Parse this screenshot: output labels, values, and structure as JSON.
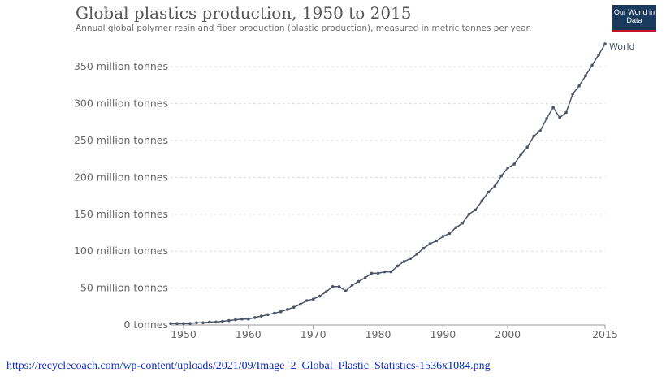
{
  "chart_data": {
    "type": "line",
    "title": "Global plastics production, 1950 to 2015",
    "subtitle": "Annual global polymer resin and fiber production (plastic production), measured in metric tonnes per year.",
    "xlabel": "",
    "ylabel": "",
    "xlim": [
      1948,
      2015
    ],
    "ylim": [
      0,
      380
    ],
    "x_ticks": [
      {
        "value": 1950,
        "label": "1950"
      },
      {
        "value": 1960,
        "label": "1960"
      },
      {
        "value": 1970,
        "label": "1970"
      },
      {
        "value": 1980,
        "label": "1980"
      },
      {
        "value": 1990,
        "label": "1990"
      },
      {
        "value": 2000,
        "label": "2000"
      },
      {
        "value": 2015,
        "label": "2015"
      }
    ],
    "y_ticks": [
      {
        "value": 0,
        "label": "0 tonnes"
      },
      {
        "value": 50,
        "label": "50 million tonnes"
      },
      {
        "value": 100,
        "label": "100 million tonnes"
      },
      {
        "value": 150,
        "label": "150 million tonnes"
      },
      {
        "value": 200,
        "label": "200 million tonnes"
      },
      {
        "value": 250,
        "label": "250 million tonnes"
      },
      {
        "value": 300,
        "label": "300 million tonnes"
      },
      {
        "value": 350,
        "label": "350 million tonnes"
      }
    ],
    "grid": true,
    "legend": "end-of-line label",
    "series": [
      {
        "name": "World",
        "color": "#4a5568",
        "x": [
          1948,
          1949,
          1950,
          1951,
          1952,
          1953,
          1954,
          1955,
          1956,
          1957,
          1958,
          1959,
          1960,
          1961,
          1962,
          1963,
          1964,
          1965,
          1966,
          1967,
          1968,
          1969,
          1970,
          1971,
          1972,
          1973,
          1974,
          1975,
          1976,
          1977,
          1978,
          1979,
          1980,
          1981,
          1982,
          1983,
          1984,
          1985,
          1986,
          1987,
          1988,
          1989,
          1990,
          1991,
          1992,
          1993,
          1994,
          1995,
          1996,
          1997,
          1998,
          1999,
          2000,
          2001,
          2002,
          2003,
          2004,
          2005,
          2006,
          2007,
          2008,
          2009,
          2010,
          2011,
          2012,
          2013,
          2014,
          2015
        ],
        "values": [
          2,
          2,
          2,
          2,
          3,
          3,
          4,
          4,
          5,
          6,
          7,
          8,
          8,
          10,
          12,
          14,
          16,
          18,
          21,
          24,
          28,
          33,
          35,
          39,
          45,
          52,
          52,
          46,
          54,
          59,
          64,
          70,
          70,
          72,
          72,
          80,
          86,
          90,
          96,
          104,
          110,
          114,
          120,
          124,
          132,
          138,
          150,
          156,
          168,
          180,
          188,
          202,
          213,
          218,
          231,
          241,
          256,
          263,
          280,
          295,
          281,
          288,
          313,
          324,
          338,
          352,
          366,
          381
        ]
      }
    ]
  },
  "branding": {
    "logo_text": "Our World in Data",
    "logo_bg": "#1a3a5e",
    "logo_accent": "#c8102e"
  },
  "source_link": "https://recyclecoach.com/wp-content/uploads/2021/09/Image_2_Global_Plastic_Statistics-1536x1084.png"
}
